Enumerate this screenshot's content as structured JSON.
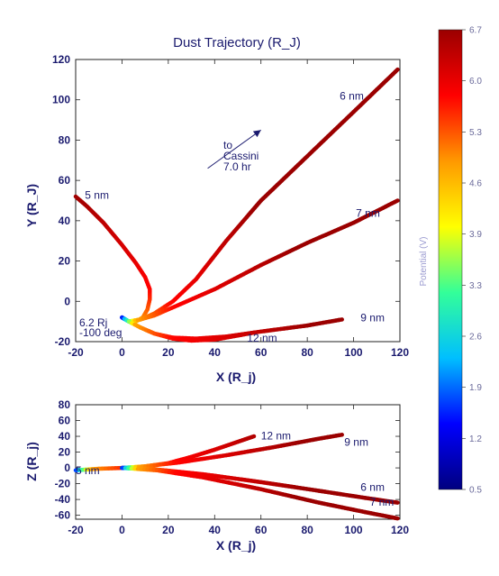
{
  "chart_data": [
    {
      "type": "line",
      "title": "Dust Trajectory (R_J)",
      "xlabel": "X (R_j)",
      "ylabel": "Y (R_J)",
      "xlim": [
        -20,
        120
      ],
      "ylim": [
        -20,
        120
      ],
      "x_ticks": [
        "-20",
        "0",
        "20",
        "40",
        "60",
        "80",
        "100",
        "120"
      ],
      "y_ticks": [
        "-20",
        "0",
        "20",
        "40",
        "60",
        "80",
        "100",
        "120"
      ],
      "series": [
        {
          "name": "5 nm",
          "label_at": [
            -16,
            51
          ],
          "points": [
            [
              0,
              -8
            ],
            [
              3,
              -10
            ],
            [
              6,
              -10
            ],
            [
              9,
              -8
            ],
            [
              11,
              -4
            ],
            [
              12,
              1
            ],
            [
              12,
              6
            ],
            [
              10,
              12
            ],
            [
              6,
              19
            ],
            [
              0,
              28
            ],
            [
              -8,
              39
            ],
            [
              -15,
              47
            ],
            [
              -20,
              52
            ]
          ]
        },
        {
          "name": "6 nm",
          "label_at": [
            94,
            100
          ],
          "points": [
            [
              0,
              -8
            ],
            [
              3,
              -10
            ],
            [
              8,
              -9
            ],
            [
              14,
              -6
            ],
            [
              22,
              0
            ],
            [
              32,
              11
            ],
            [
              45,
              30
            ],
            [
              60,
              50
            ],
            [
              80,
              72
            ],
            [
              100,
              94
            ],
            [
              119,
              115
            ]
          ]
        },
        {
          "name": "7 nm",
          "label_at": [
            101,
            42
          ],
          "points": [
            [
              0,
              -8
            ],
            [
              3,
              -10
            ],
            [
              8,
              -9
            ],
            [
              14,
              -7
            ],
            [
              24,
              -2
            ],
            [
              40,
              6
            ],
            [
              60,
              18
            ],
            [
              80,
              29
            ],
            [
              100,
              39
            ],
            [
              119,
              50
            ]
          ]
        },
        {
          "name": "9 nm",
          "label_at": [
            103,
            -10
          ],
          "points": [
            [
              0,
              -8
            ],
            [
              3,
              -10
            ],
            [
              8,
              -13
            ],
            [
              14,
              -16
            ],
            [
              22,
              -18
            ],
            [
              32,
              -18.5
            ],
            [
              45,
              -17.5
            ],
            [
              60,
              -15
            ],
            [
              80,
              -12
            ],
            [
              95,
              -9
            ]
          ]
        },
        {
          "name": "12 nm",
          "label_at": [
            54,
            -20
          ],
          "points": [
            [
              0,
              -8
            ],
            [
              3,
              -10
            ],
            [
              8,
              -13
            ],
            [
              14,
              -16
            ],
            [
              22,
              -18.5
            ],
            [
              30,
              -19.5
            ],
            [
              40,
              -19
            ],
            [
              50,
              -17
            ],
            [
              57,
              -15.5
            ]
          ]
        }
      ],
      "annotations": [
        {
          "text_lines": [
            "to",
            "Cassini",
            "7.0 hr"
          ],
          "at": [
            22,
            76
          ],
          "arrow_from": [
            37,
            66
          ],
          "arrow_to": [
            60,
            85
          ]
        },
        {
          "text_lines": [
            "6.2 Rj",
            "-100 deg"
          ],
          "at": [
            -9,
            -12
          ]
        }
      ]
    },
    {
      "type": "line",
      "xlabel": "X (R_j)",
      "ylabel": "Z (R_j)",
      "xlim": [
        -20,
        120
      ],
      "ylim": [
        -65,
        80
      ],
      "x_ticks": [
        "-20",
        "0",
        "20",
        "40",
        "60",
        "80",
        "100",
        "120"
      ],
      "y_ticks": [
        "80",
        "60",
        "40",
        "20",
        "0",
        "-20",
        "-40",
        "-60"
      ],
      "series": [
        {
          "name": "5 nm",
          "label_at": [
            -20,
            -8
          ],
          "points": [
            [
              -20,
              -3
            ],
            [
              -10,
              -1
            ],
            [
              0,
              0
            ],
            [
              5,
              0
            ],
            [
              12,
              0
            ]
          ]
        },
        {
          "name": "12 nm",
          "label_at": [
            60,
            36
          ],
          "points": [
            [
              0,
              0
            ],
            [
              10,
              2
            ],
            [
              20,
              6
            ],
            [
              30,
              14
            ],
            [
              40,
              23
            ],
            [
              50,
              33
            ],
            [
              57,
              40
            ]
          ]
        },
        {
          "name": "9 nm",
          "label_at": [
            96,
            28
          ],
          "points": [
            [
              0,
              0
            ],
            [
              10,
              2
            ],
            [
              25,
              7
            ],
            [
              45,
              16
            ],
            [
              65,
              26
            ],
            [
              85,
              37
            ],
            [
              95,
              42
            ]
          ]
        },
        {
          "name": "6 nm",
          "label_at": [
            103,
            -29
          ],
          "points": [
            [
              0,
              0
            ],
            [
              15,
              -2
            ],
            [
              35,
              -8
            ],
            [
              60,
              -18
            ],
            [
              85,
              -29
            ],
            [
              105,
              -38
            ],
            [
              119,
              -44
            ]
          ]
        },
        {
          "name": "7 nm",
          "label_at": [
            107,
            -48
          ],
          "points": [
            [
              0,
              0
            ],
            [
              15,
              -3
            ],
            [
              35,
              -12
            ],
            [
              60,
              -27
            ],
            [
              85,
              -44
            ],
            [
              105,
              -56
            ],
            [
              119,
              -64
            ]
          ]
        }
      ]
    }
  ],
  "colorbar": {
    "label": "Potential (V)",
    "min": 0.5,
    "max": 6.7,
    "tick_labels": [
      "6.7",
      "6.0",
      "5.3",
      "4.6",
      "3.9",
      "3.3",
      "2.6",
      "1.9",
      "1.2",
      "0.5"
    ],
    "colormap": [
      "#00007f",
      "#0000ff",
      "#00bfff",
      "#33ff99",
      "#ffff00",
      "#ff9900",
      "#ff0000",
      "#9b0000"
    ]
  }
}
